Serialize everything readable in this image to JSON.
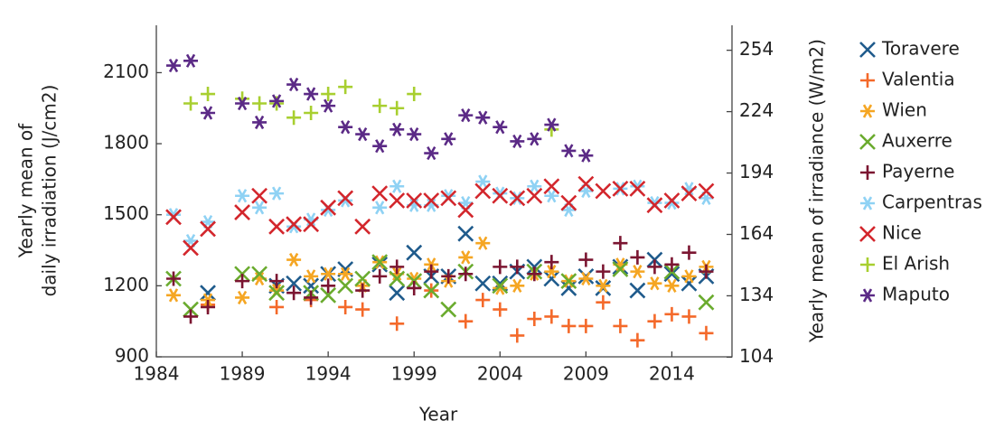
{
  "chart_data": {
    "type": "scatter",
    "xlabel": "Year",
    "ylabel": [
      "Yearly mean of",
      "daily irradiation (J/cm2)"
    ],
    "y2label": "Yearly mean of irradiance (W/m2)",
    "xlim": [
      1984,
      2017.5
    ],
    "xticks": [
      1984,
      1989,
      1994,
      1999,
      2004,
      2009,
      2014
    ],
    "ylim": [
      900,
      2300
    ],
    "yticks": [
      900,
      1200,
      1500,
      1800,
      2100
    ],
    "y2lim": [
      104.17,
      266.2
    ],
    "y2ticks": [
      104,
      134,
      164,
      194,
      224,
      254
    ],
    "legend": "right",
    "series": [
      {
        "name": "Toravere",
        "color": "#1f5b8c",
        "marker": "x",
        "x": [
          1987,
          1991,
          1992,
          1993,
          1994,
          1995,
          1997,
          1998,
          1999,
          2000,
          2001,
          2002,
          2003,
          2004,
          2005,
          2006,
          2007,
          2008,
          2009,
          2010,
          2011,
          2012,
          2013,
          2014,
          2015,
          2016
        ],
        "values": [
          1170,
          1200,
          1210,
          1200,
          1250,
          1270,
          1290,
          1170,
          1340,
          1240,
          1240,
          1420,
          1210,
          1210,
          1260,
          1280,
          1230,
          1190,
          1240,
          1190,
          1280,
          1180,
          1310,
          1250,
          1210,
          1240
        ]
      },
      {
        "name": "Valentia",
        "color": "#f4692a",
        "marker": "plus",
        "x": [
          1987,
          1991,
          1993,
          1995,
          1996,
          1998,
          2000,
          2002,
          2003,
          2004,
          2005,
          2006,
          2007,
          2008,
          2009,
          2010,
          2011,
          2012,
          2013,
          2014,
          2015,
          2016
        ],
        "values": [
          1120,
          1110,
          1140,
          1110,
          1100,
          1040,
          1180,
          1050,
          1140,
          1100,
          990,
          1060,
          1070,
          1030,
          1030,
          1130,
          1030,
          970,
          1050,
          1080,
          1070,
          1000
        ]
      },
      {
        "name": "Wien",
        "color": "#f5a623",
        "marker": "star",
        "x": [
          1985,
          1987,
          1989,
          1990,
          1991,
          1992,
          1993,
          1994,
          1995,
          1996,
          1997,
          1998,
          1999,
          2000,
          2001,
          2002,
          2003,
          2004,
          2005,
          2006,
          2007,
          2008,
          2009,
          2010,
          2011,
          2012,
          2013,
          2014,
          2015,
          2016
        ],
        "values": [
          1160,
          1140,
          1150,
          1230,
          1180,
          1310,
          1240,
          1250,
          1250,
          1200,
          1300,
          1250,
          1230,
          1290,
          1220,
          1320,
          1380,
          1190,
          1200,
          1250,
          1260,
          1220,
          1230,
          1200,
          1290,
          1260,
          1210,
          1200,
          1240,
          1280
        ]
      },
      {
        "name": "Auxerre",
        "color": "#6aab2e",
        "marker": "x",
        "x": [
          1985,
          1986,
          1989,
          1990,
          1991,
          1993,
          1994,
          1995,
          1996,
          1997,
          1998,
          1999,
          2000,
          2001,
          2002,
          2004,
          2006,
          2008,
          2011,
          2014,
          2016
        ],
        "values": [
          1230,
          1100,
          1250,
          1250,
          1170,
          1170,
          1160,
          1200,
          1230,
          1300,
          1230,
          1220,
          1180,
          1100,
          1260,
          1200,
          1260,
          1220,
          1270,
          1260,
          1130
        ]
      },
      {
        "name": "Payerne",
        "color": "#7b1531",
        "marker": "plus",
        "x": [
          1985,
          1986,
          1987,
          1989,
          1991,
          1992,
          1993,
          1994,
          1996,
          1997,
          1998,
          1999,
          2000,
          2001,
          2002,
          2004,
          2005,
          2006,
          2007,
          2009,
          2010,
          2011,
          2012,
          2013,
          2014,
          2015,
          2016
        ],
        "values": [
          1230,
          1070,
          1110,
          1220,
          1220,
          1170,
          1150,
          1200,
          1180,
          1240,
          1280,
          1190,
          1260,
          1240,
          1250,
          1280,
          1280,
          1250,
          1300,
          1310,
          1260,
          1380,
          1320,
          1280,
          1290,
          1340,
          1260
        ]
      },
      {
        "name": "Carpentras",
        "color": "#8fd2f4",
        "marker": "star",
        "x": [
          1985,
          1986,
          1987,
          1989,
          1990,
          1991,
          1992,
          1993,
          1994,
          1995,
          1997,
          1998,
          1999,
          2000,
          2001,
          2002,
          2003,
          2004,
          2005,
          2006,
          2007,
          2008,
          2009,
          2011,
          2012,
          2013,
          2014,
          2015,
          2016
        ],
        "values": [
          1500,
          1390,
          1470,
          1580,
          1530,
          1590,
          1450,
          1480,
          1520,
          1560,
          1530,
          1620,
          1540,
          1540,
          1580,
          1550,
          1640,
          1590,
          1570,
          1620,
          1580,
          1520,
          1600,
          1610,
          1620,
          1550,
          1550,
          1610,
          1570
        ]
      },
      {
        "name": "Nice",
        "color": "#d3262c",
        "marker": "x",
        "x": [
          1985,
          1986,
          1987,
          1989,
          1990,
          1991,
          1992,
          1993,
          1994,
          1995,
          1996,
          1997,
          1998,
          1999,
          2000,
          2001,
          2002,
          2003,
          2004,
          2005,
          2006,
          2007,
          2008,
          2009,
          2010,
          2011,
          2012,
          2013,
          2014,
          2015,
          2016
        ],
        "values": [
          1490,
          1360,
          1440,
          1510,
          1580,
          1450,
          1460,
          1460,
          1530,
          1570,
          1450,
          1590,
          1560,
          1560,
          1560,
          1570,
          1520,
          1600,
          1580,
          1570,
          1580,
          1620,
          1550,
          1630,
          1600,
          1610,
          1610,
          1540,
          1560,
          1590,
          1600
        ]
      },
      {
        "name": "El Arish",
        "color": "#a8cf30",
        "marker": "plus",
        "x": [
          1986,
          1987,
          1989,
          1990,
          1991,
          1992,
          1993,
          1994,
          1995,
          1997,
          1998,
          1999,
          2007
        ],
        "values": [
          1970,
          2010,
          1990,
          1970,
          1970,
          1910,
          1930,
          2010,
          2040,
          1960,
          1950,
          2010,
          1860
        ]
      },
      {
        "name": "Maputo",
        "color": "#5b2a86",
        "marker": "star",
        "x": [
          1985,
          1986,
          1987,
          1989,
          1990,
          1991,
          1992,
          1993,
          1994,
          1995,
          1996,
          1997,
          1998,
          1999,
          2000,
          2001,
          2002,
          2003,
          2004,
          2005,
          2006,
          2007,
          2008,
          2009
        ],
        "values": [
          2130,
          2150,
          1930,
          1970,
          1890,
          1980,
          2050,
          2010,
          1960,
          1870,
          1840,
          1790,
          1860,
          1840,
          1760,
          1820,
          1920,
          1910,
          1870,
          1810,
          1820,
          1880,
          1770,
          1750
        ]
      }
    ]
  }
}
